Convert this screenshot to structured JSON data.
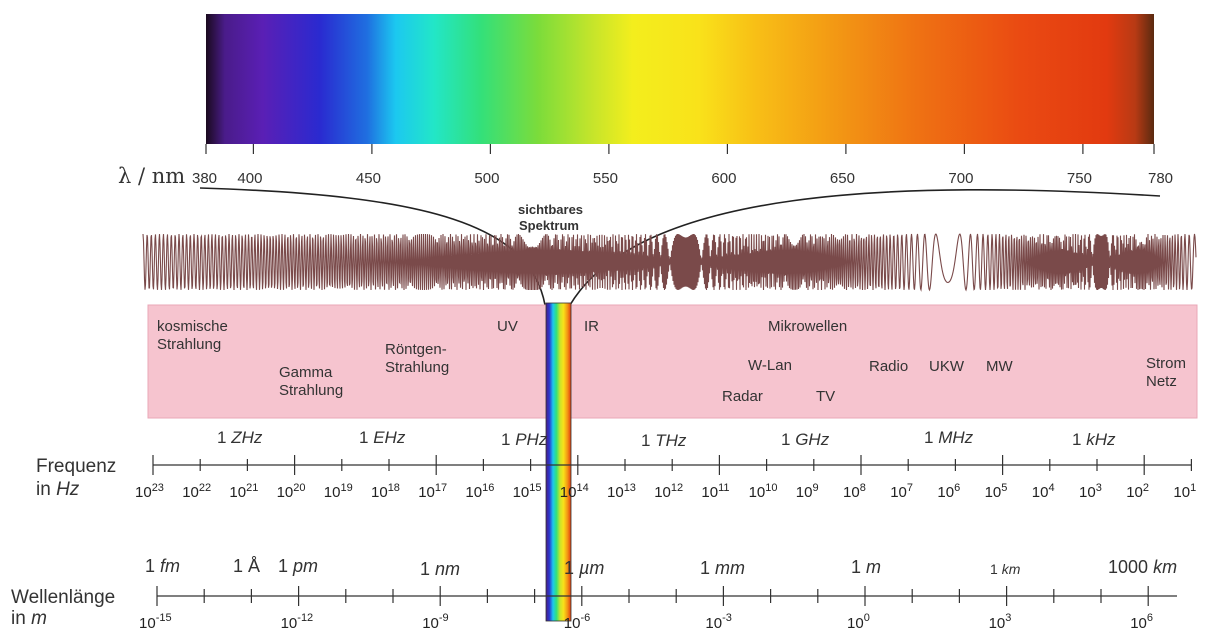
{
  "visible_spectrum": {
    "axis_label": "λ / nm",
    "ticks": [
      "380",
      "400",
      "450",
      "500",
      "550",
      "600",
      "650",
      "700",
      "750",
      "780"
    ],
    "title_line1": "sichtbares",
    "title_line2": "Spektrum"
  },
  "bands": {
    "cosmic": [
      "kosmische",
      "Strahlung"
    ],
    "gamma": [
      "Gamma",
      "Strahlung"
    ],
    "xray": [
      "Röntgen-",
      "Strahlung"
    ],
    "uv": "UV",
    "ir": "IR",
    "microwave": "Mikrowellen",
    "wlan": "W-Lan",
    "radar": "Radar",
    "tv": "TV",
    "radio": "Radio",
    "ukw": "UKW",
    "mw": "MW",
    "power": [
      "Strom",
      "Netz"
    ]
  },
  "frequency": {
    "axis_label_line1": "Frequenz",
    "axis_label_prefix": "in",
    "axis_label_unit": "Hz",
    "units": [
      {
        "num": "1",
        "unit": "ZHz"
      },
      {
        "num": "1",
        "unit": "EHz"
      },
      {
        "num": "1",
        "unit": "PHz"
      },
      {
        "num": "1",
        "unit": "THz"
      },
      {
        "num": "1",
        "unit": "GHz"
      },
      {
        "num": "1",
        "unit": "MHz"
      },
      {
        "num": "1",
        "unit": "kHz"
      }
    ],
    "exponents": [
      "23",
      "22",
      "21",
      "20",
      "19",
      "18",
      "17",
      "16",
      "15",
      "14",
      "13",
      "12",
      "11",
      "10",
      "9",
      "8",
      "7",
      "6",
      "5",
      "4",
      "3",
      "2",
      "1"
    ]
  },
  "wavelength": {
    "axis_label_line1": "Wellenlänge",
    "axis_label_prefix": "in",
    "axis_label_unit": "m",
    "units": [
      {
        "num": "1",
        "unit": "fm"
      },
      {
        "num": "1",
        "unit": "Å"
      },
      {
        "num": "1",
        "unit": "pm"
      },
      {
        "num": "1",
        "unit": "nm"
      },
      {
        "num": "1",
        "unit": "µm"
      },
      {
        "num": "1",
        "unit": "mm"
      },
      {
        "num": "1",
        "unit": "m"
      },
      {
        "num": "1",
        "unit": "km"
      },
      {
        "num": "1000",
        "unit": "km"
      }
    ],
    "exponents": [
      "-15",
      "-12",
      "-9",
      "-6",
      "-3",
      "0",
      "3",
      "6"
    ]
  },
  "colors": {
    "band_fill": "#f6c4cf",
    "band_stroke": "#e9a7b7",
    "wave": "#7a4a4a",
    "axis": "#333333"
  }
}
